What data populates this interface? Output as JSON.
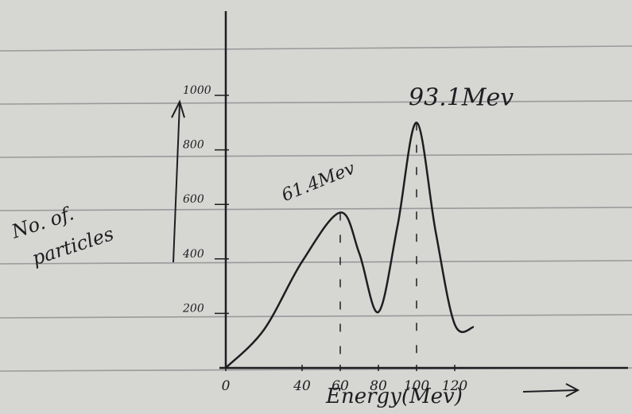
{
  "chart_data": {
    "type": "line",
    "x_label": "Energy(Mev)",
    "y_label": "No. of. particles",
    "x": [
      0,
      20,
      40,
      60,
      70,
      80,
      90,
      100,
      110,
      120,
      130
    ],
    "values": [
      0,
      140,
      390,
      570,
      420,
      205,
      520,
      900,
      500,
      160,
      150
    ],
    "color": "#1e1e22",
    "xlim": [
      0,
      140
    ],
    "xticks": [
      0,
      40,
      60,
      80,
      100,
      120
    ],
    "ylim": [
      0,
      1000
    ],
    "yticks": [
      200,
      400,
      600,
      800,
      1000
    ],
    "annotations": [
      {
        "text": "61.4Mev",
        "x": 60,
        "y": 570
      },
      {
        "text": "93.1Mev",
        "x": 100,
        "y": 900
      }
    ]
  }
}
